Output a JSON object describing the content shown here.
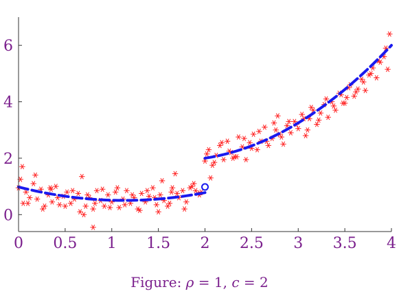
{
  "chart_data": {
    "type": "scatter",
    "title": "",
    "xlabel": "",
    "ylabel": "",
    "xlim": [
      0,
      4
    ],
    "ylim": [
      -0.6,
      7.0
    ],
    "x_ticks": [
      0,
      0.5,
      1,
      1.5,
      2,
      2.5,
      3,
      3.5,
      4
    ],
    "x_tick_labels": [
      "0",
      "0.5",
      "1",
      "1.5",
      "2",
      "2.5",
      "3",
      "3.5",
      "4"
    ],
    "y_ticks": [
      0,
      2,
      4,
      6
    ],
    "y_tick_labels": [
      "0",
      "2",
      "4",
      "6"
    ],
    "grid": false,
    "series_points": {
      "color": "#ff2020",
      "marker": "asterisk",
      "x": [
        0.0,
        0.04,
        0.08,
        0.12,
        0.16,
        0.2,
        0.24,
        0.28,
        0.32,
        0.36,
        0.4,
        0.44,
        0.48,
        0.52,
        0.56,
        0.6,
        0.64,
        0.68,
        0.72,
        0.76,
        0.8,
        0.84,
        0.88,
        0.92,
        0.96,
        1.0,
        1.04,
        1.08,
        1.12,
        1.16,
        1.2,
        1.24,
        1.28,
        1.32,
        1.36,
        1.4,
        1.44,
        1.48,
        1.52,
        1.56,
        1.6,
        1.64,
        1.68,
        1.72,
        1.76,
        1.8,
        1.84,
        1.88,
        1.92,
        1.96,
        0.02,
        0.1,
        0.18,
        0.26,
        0.34,
        0.42,
        0.5,
        0.58,
        0.66,
        0.74,
        0.82,
        0.9,
        0.98,
        1.06,
        1.14,
        1.22,
        1.3,
        1.38,
        1.46,
        1.54,
        1.62,
        1.7,
        1.78,
        1.86,
        1.94,
        0.05,
        0.35,
        0.7,
        0.8,
        1.5,
        1.65,
        1.9,
        2.0,
        2.04,
        2.08,
        2.12,
        2.16,
        2.2,
        2.24,
        2.28,
        2.32,
        2.36,
        2.4,
        2.44,
        2.48,
        2.52,
        2.56,
        2.6,
        2.64,
        2.68,
        2.72,
        2.76,
        2.8,
        2.84,
        2.88,
        2.92,
        2.96,
        3.0,
        3.04,
        3.08,
        3.12,
        3.16,
        3.2,
        3.24,
        3.28,
        3.32,
        3.36,
        3.4,
        3.44,
        3.48,
        3.52,
        3.56,
        3.6,
        3.64,
        3.68,
        3.72,
        3.76,
        3.8,
        3.84,
        3.88,
        3.92,
        3.96,
        2.02,
        2.1,
        2.18,
        2.26,
        2.34,
        2.42,
        2.5,
        2.58,
        2.66,
        2.74,
        2.82,
        2.9,
        2.98,
        3.06,
        3.14,
        3.22,
        3.3,
        3.38,
        3.46,
        3.54,
        3.62,
        3.7,
        3.78,
        3.86,
        3.94,
        2.06,
        2.3,
        2.78,
        3.1,
        3.5,
        3.98
      ],
      "y": [
        0.95,
        1.7,
        0.8,
        0.6,
        1.1,
        0.55,
        0.9,
        0.3,
        0.7,
        0.45,
        1.0,
        0.35,
        0.65,
        0.8,
        0.4,
        0.55,
        0.75,
        1.35,
        0.3,
        0.6,
        0.2,
        0.85,
        0.5,
        0.3,
        0.7,
        0.45,
        0.8,
        0.25,
        0.55,
        0.85,
        0.4,
        0.6,
        0.2,
        0.75,
        0.45,
        0.65,
        0.95,
        0.35,
        0.7,
        0.5,
        0.3,
        0.8,
        1.45,
        0.6,
        0.85,
        0.45,
        0.95,
        1.1,
        0.75,
        0.8,
        1.25,
        0.4,
        1.4,
        0.2,
        0.95,
        0.6,
        0.3,
        0.85,
        0.1,
        0.7,
        0.4,
        0.9,
        0.25,
        0.95,
        0.35,
        0.7,
        0.15,
        0.85,
        0.6,
        1.2,
        0.4,
        0.75,
        0.2,
        1.0,
        0.7,
        0.4,
        0.9,
        0.0,
        -0.45,
        0.1,
        0.95,
        0.85,
        1.9,
        2.3,
        1.75,
        2.1,
        2.45,
        1.95,
        2.6,
        2.2,
        2.05,
        2.75,
        2.4,
        1.95,
        2.55,
        2.85,
        2.3,
        2.6,
        3.1,
        2.45,
        2.7,
        3.0,
        2.85,
        2.5,
        3.15,
        2.9,
        3.3,
        3.05,
        3.55,
        2.8,
        3.4,
        3.7,
        3.2,
        3.6,
        3.9,
        3.45,
        4.0,
        3.7,
        4.3,
        3.95,
        4.15,
        4.6,
        4.2,
        4.45,
        4.8,
        4.4,
        4.95,
        5.2,
        4.85,
        5.4,
        5.6,
        5.15,
        2.15,
        1.85,
        2.55,
        2.25,
        2.05,
        2.7,
        2.35,
        2.95,
        2.6,
        3.25,
        2.75,
        3.3,
        3.2,
        3.4,
        3.8,
        3.35,
        4.1,
        3.85,
        4.25,
        4.5,
        4.35,
        4.7,
        5.0,
        5.45,
        5.9,
        1.3,
        2.0,
        3.5,
        3.0,
        3.95,
        6.4
      ]
    },
    "series_fit": {
      "color": "#1a1aee",
      "style": "dashed",
      "segment1": {
        "x0": 0,
        "x1": 2,
        "a": 0.98,
        "b": -0.84,
        "c": 0.37
      },
      "segment2": {
        "x0": 2,
        "x1": 4,
        "a": 2.0,
        "b": 0.5,
        "c": 0.75
      },
      "break_marker": {
        "x": 2,
        "y": 0.98,
        "style": "open-circle"
      }
    }
  },
  "caption": {
    "prefix": "Figure: ",
    "rho_symbol": "ρ",
    "rho_value": " = 1, ",
    "c_symbol": "c",
    "c_value": " = 2"
  }
}
